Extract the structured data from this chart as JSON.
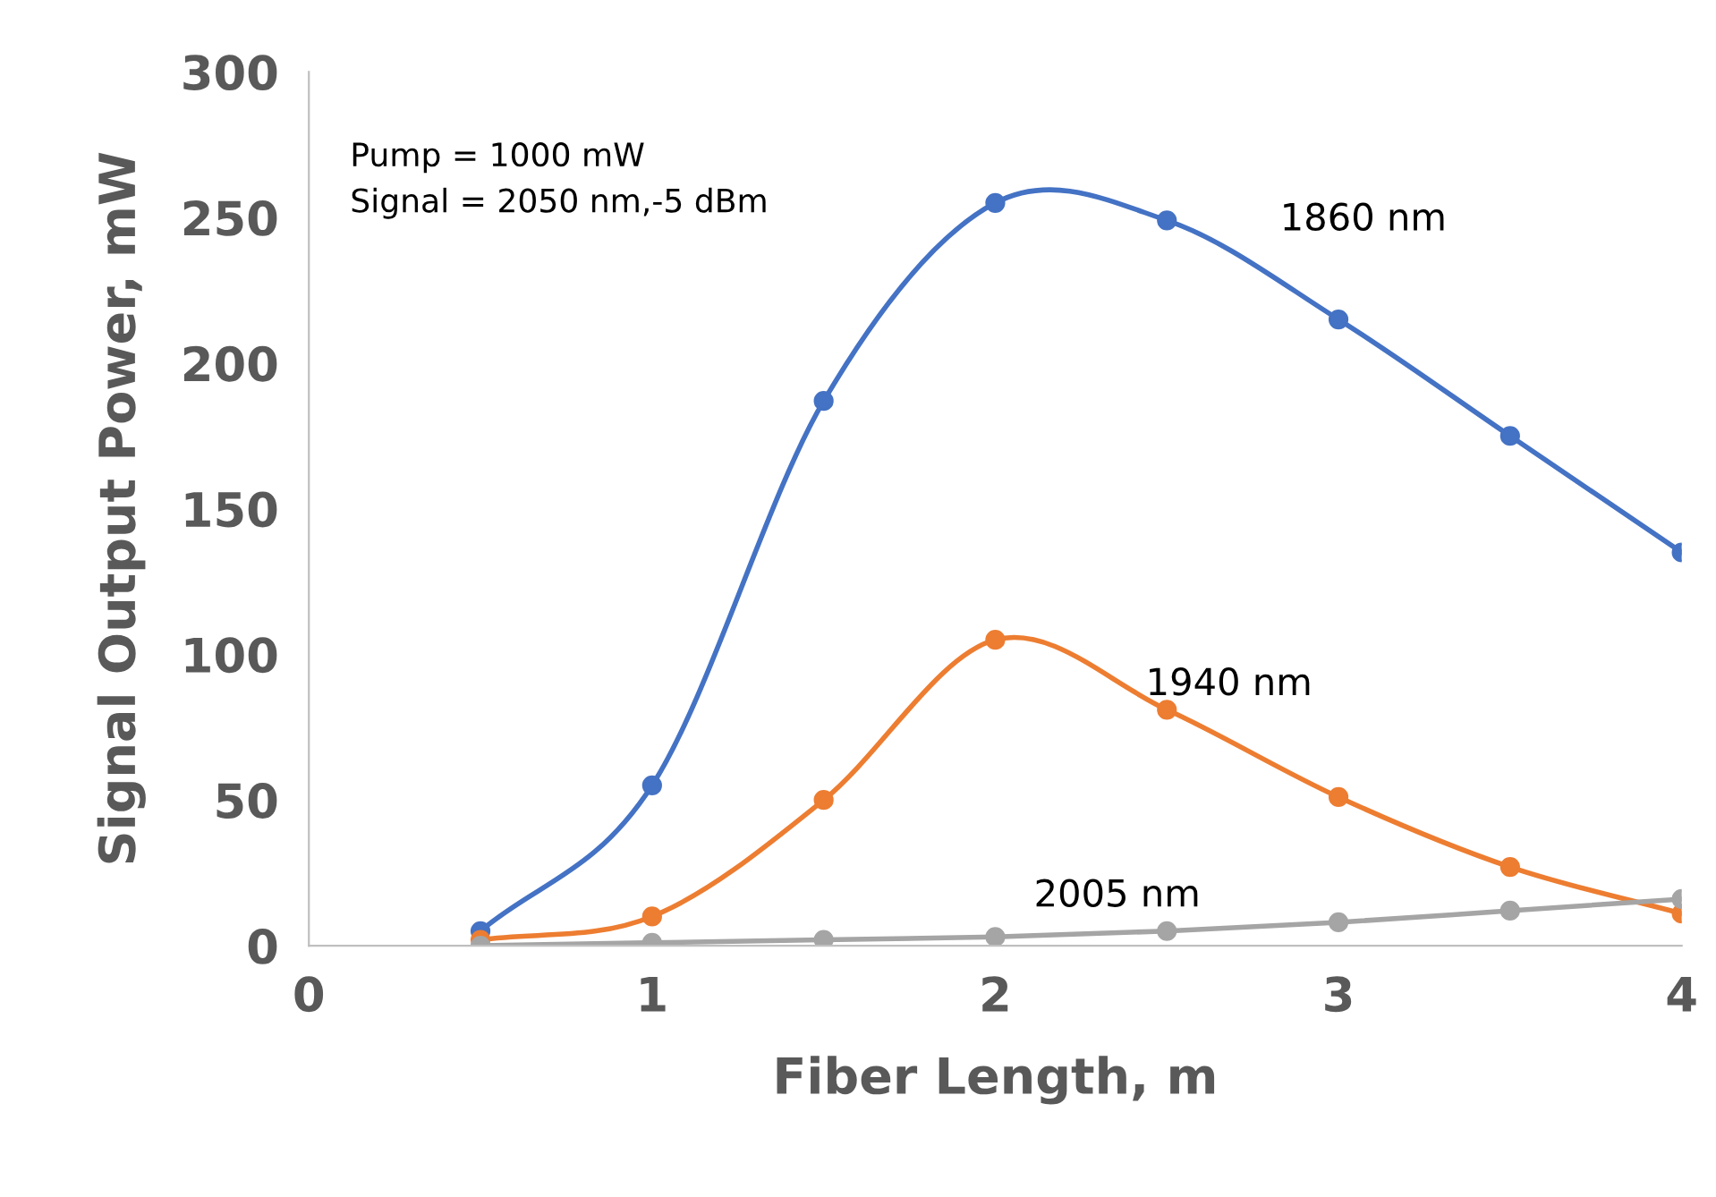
{
  "chart_data": {
    "type": "line",
    "xlabel": "Fiber Length, m",
    "ylabel": "Signal Output Power, mW",
    "x": [
      0.5,
      1,
      1.5,
      2,
      2.5,
      3,
      3.5,
      4
    ],
    "series": [
      {
        "name": "1860 nm",
        "color": "#4472c4",
        "values": [
          5,
          55,
          187,
          255,
          249,
          215,
          175,
          135
        ]
      },
      {
        "name": "1940 nm",
        "color": "#ed7d31",
        "values": [
          2,
          10,
          50,
          105,
          81,
          51,
          27,
          11
        ]
      },
      {
        "name": "2005 nm",
        "color": "#a5a5a5",
        "values": [
          0,
          1,
          2,
          3,
          5,
          8,
          12,
          16
        ]
      }
    ],
    "xlim": [
      0,
      4
    ],
    "xticks": [
      0,
      1,
      2,
      3,
      4
    ],
    "ylim": [
      0,
      300
    ],
    "yticks": [
      0,
      50,
      100,
      150,
      200,
      250,
      300
    ],
    "grid": false,
    "legend": false,
    "marker": "circle",
    "line_style": "solid",
    "annotations": [
      "Pump = 1000 mW\nSignal = 2050 nm,-5 dBm"
    ]
  }
}
